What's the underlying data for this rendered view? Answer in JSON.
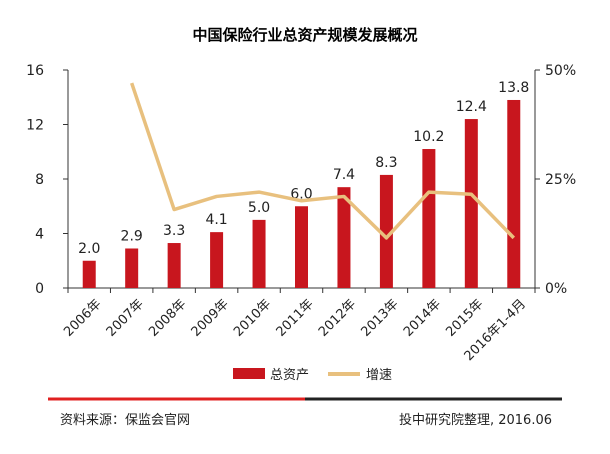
{
  "chart_data": {
    "type": "bar",
    "title": "中国保险行业总资产规模发展概况",
    "categories": [
      "2006年",
      "2007年",
      "2008年",
      "2009年",
      "2010年",
      "2011年",
      "2012年",
      "2013年",
      "2014年",
      "2015年",
      "2016年1-4月"
    ],
    "series": [
      {
        "name": "总资产",
        "type": "bar",
        "axis": "left",
        "values": [
          2.0,
          2.9,
          3.3,
          4.1,
          5.0,
          6.0,
          7.4,
          8.3,
          10.2,
          12.4,
          13.8
        ],
        "color": "#c8161e"
      },
      {
        "name": "增速",
        "type": "line",
        "axis": "right",
        "values": [
          null,
          47,
          18,
          21,
          22,
          20,
          21,
          11.5,
          22,
          21.5,
          11.5
        ],
        "color": "#e8c07e"
      }
    ],
    "y_left": {
      "min": 0,
      "max": 16,
      "ticks": [
        0,
        4,
        8,
        12,
        16
      ]
    },
    "y_right": {
      "min": 0,
      "max": 50,
      "ticks": [
        "0%",
        "25%",
        "50%"
      ],
      "tick_values": [
        0,
        25,
        50
      ]
    },
    "data_labels": [
      "2.0",
      "2.9",
      "3.3",
      "4.1",
      "5.0",
      "6.0",
      "7.4",
      "8.3",
      "10.2",
      "12.4",
      "13.8"
    ],
    "legend": {
      "placement": "bottom"
    }
  },
  "footer": {
    "source": "资料来源：保监会官网",
    "credit": "投中研究院整理, 2016.06",
    "accent_color": "#e02020",
    "rule_color": "#222222"
  }
}
